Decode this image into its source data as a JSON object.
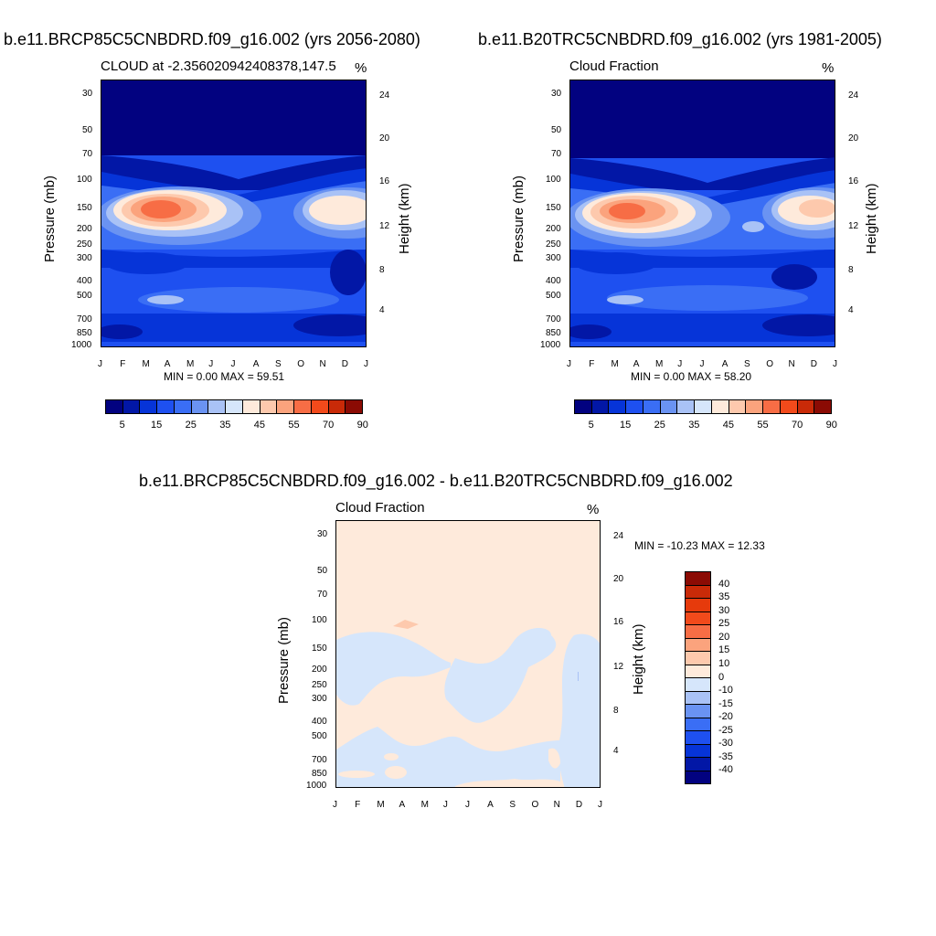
{
  "chart_data": [
    {
      "type": "heatmap",
      "title": "b.e11.BRCP85C5CNBDRD.f09_g16.002 (yrs 2056-2080)",
      "subtitle_left": "CLOUD at -2.356020942408378,147.5",
      "units": "%",
      "ylabel": "Pressure (mb)",
      "ylabel_right": "Height (km)",
      "minmax_text": "MIN =   0.00 MAX =  59.51",
      "min": 0.0,
      "max": 59.51,
      "months": [
        "J",
        "F",
        "M",
        "A",
        "M",
        "J",
        "J",
        "A",
        "S",
        "O",
        "N",
        "D",
        "J"
      ],
      "pressure_ticks": [
        "30",
        "50",
        "70",
        "100",
        "150",
        "200",
        "250",
        "300",
        "400",
        "500",
        "700",
        "850",
        "1000"
      ],
      "height_ticks": [
        "24",
        "20",
        "16",
        "12",
        "8",
        "4"
      ]
    },
    {
      "type": "heatmap",
      "title": "b.e11.B20TRC5CNBDRD.f09_g16.002 (yrs 1981-2005)",
      "subtitle_left": "Cloud Fraction",
      "units": "%",
      "ylabel": "Pressure (mb)",
      "ylabel_right": "Height (km)",
      "minmax_text": "MIN =   0.00 MAX =  58.20",
      "min": 0.0,
      "max": 58.2,
      "months": [
        "J",
        "F",
        "M",
        "A",
        "M",
        "J",
        "J",
        "A",
        "S",
        "O",
        "N",
        "D",
        "J"
      ],
      "pressure_ticks": [
        "30",
        "50",
        "70",
        "100",
        "150",
        "200",
        "250",
        "300",
        "400",
        "500",
        "700",
        "850",
        "1000"
      ],
      "height_ticks": [
        "24",
        "20",
        "16",
        "12",
        "8",
        "4"
      ]
    },
    {
      "type": "heatmap",
      "title": "b.e11.BRCP85C5CNBDRD.f09_g16.002 - b.e11.B20TRC5CNBDRD.f09_g16.002",
      "subtitle_left": "Cloud Fraction",
      "units": "%",
      "ylabel": "Pressure (mb)",
      "ylabel_right": "Height (km)",
      "minmax_text": "MIN = -10.23 MAX =  12.33",
      "min": -10.23,
      "max": 12.33,
      "months": [
        "J",
        "F",
        "M",
        "A",
        "M",
        "J",
        "J",
        "A",
        "S",
        "O",
        "N",
        "D",
        "J"
      ],
      "pressure_ticks": [
        "30",
        "50",
        "70",
        "100",
        "150",
        "200",
        "250",
        "300",
        "400",
        "500",
        "700",
        "850",
        "1000"
      ],
      "height_ticks": [
        "24",
        "20",
        "16",
        "12",
        "8",
        "4"
      ]
    }
  ],
  "labelbar_top": {
    "labels": [
      "5",
      "15",
      "25",
      "35",
      "45",
      "55",
      "70",
      "90"
    ],
    "colors": [
      "#020280",
      "#0217a6",
      "#0634d8",
      "#1e50f0",
      "#3a6ef5",
      "#6a93f2",
      "#a9c2f6",
      "#d6e6fb",
      "#feeadb",
      "#fdc9ad",
      "#fba37d",
      "#f76d45",
      "#f24a1b",
      "#c92a08",
      "#8b0b04"
    ]
  },
  "labelbar_diff": {
    "labels": [
      "40",
      "35",
      "30",
      "25",
      "20",
      "15",
      "10",
      "0",
      "-10",
      "-15",
      "-20",
      "-25",
      "-30",
      "-35",
      "-40"
    ],
    "colors": [
      "#8b0b04",
      "#c92a08",
      "#e63a0c",
      "#f24a1b",
      "#f76d45",
      "#fba37d",
      "#fdc9ad",
      "#feeadb",
      "#d6e6fb",
      "#a9c2f6",
      "#6a93f2",
      "#3a6ef5",
      "#1e50f0",
      "#0634d8",
      "#0217a6",
      "#020280"
    ]
  }
}
